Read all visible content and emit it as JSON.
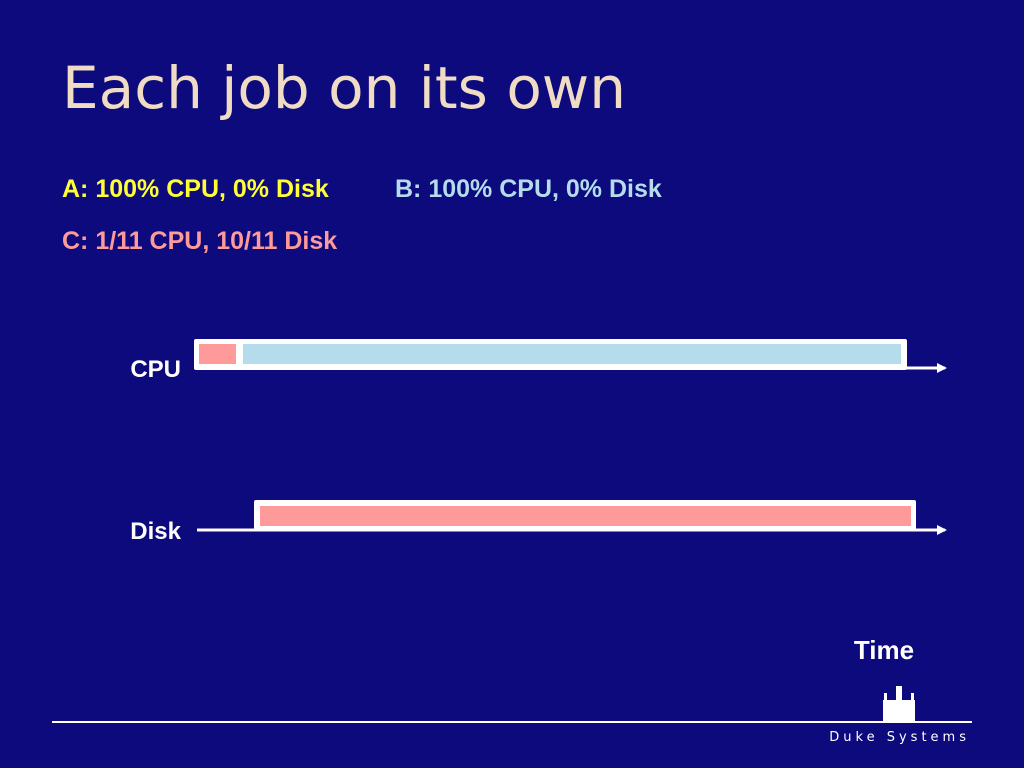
{
  "header": {
    "title": "Each job on its own"
  },
  "jobs": [
    "A: 100% CPU, 0% Disk",
    "B: 100% CPU, 0% Disk",
    "C: 1/11 CPU, 10/11 Disk"
  ],
  "lanes": [
    "CPU",
    "Disk"
  ],
  "axis_label": "Time",
  "footer": "Duke Systems"
}
